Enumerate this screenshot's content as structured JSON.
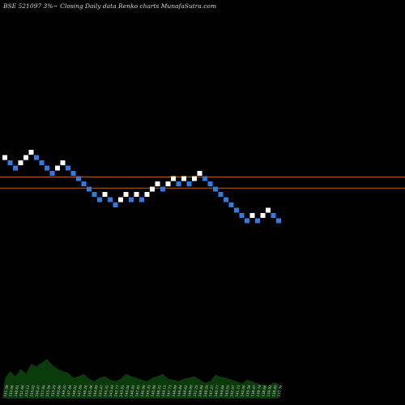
{
  "header": {
    "title": "BSE 521097 3%~  Closing Daily data  Renko  charts MunafaSutra.com"
  },
  "colors": {
    "background": "#000000",
    "up_brick": "#ffffff",
    "down_brick": "#2f7be6",
    "resistance_line": "#b5651d",
    "support_line": "#b5651d",
    "volume_fill": "#0b3a0b",
    "volume_text": "#cfcfcf"
  },
  "chart_data": [
    {
      "type": "renko",
      "title": "BSE 521097 3%~  Closing Daily data  Renko  charts MunafaSutra.com",
      "y_unit_note": "",
      "brick_step": 1,
      "bricks": [
        {
          "dir": "up",
          "level": 9
        },
        {
          "dir": "down",
          "level": 8
        },
        {
          "dir": "down",
          "level": 7
        },
        {
          "dir": "up",
          "level": 8
        },
        {
          "dir": "up",
          "level": 9
        },
        {
          "dir": "up",
          "level": 10
        },
        {
          "dir": "down",
          "level": 9
        },
        {
          "dir": "down",
          "level": 8
        },
        {
          "dir": "down",
          "level": 7
        },
        {
          "dir": "down",
          "level": 6
        },
        {
          "dir": "up",
          "level": 7
        },
        {
          "dir": "up",
          "level": 8
        },
        {
          "dir": "down",
          "level": 7
        },
        {
          "dir": "down",
          "level": 6
        },
        {
          "dir": "down",
          "level": 5
        },
        {
          "dir": "down",
          "level": 4
        },
        {
          "dir": "down",
          "level": 3
        },
        {
          "dir": "down",
          "level": 2
        },
        {
          "dir": "down",
          "level": 1
        },
        {
          "dir": "up",
          "level": 2
        },
        {
          "dir": "down",
          "level": 1
        },
        {
          "dir": "down",
          "level": 0
        },
        {
          "dir": "up",
          "level": 1
        },
        {
          "dir": "up",
          "level": 2
        },
        {
          "dir": "down",
          "level": 1
        },
        {
          "dir": "up",
          "level": 2
        },
        {
          "dir": "down",
          "level": 1
        },
        {
          "dir": "up",
          "level": 2
        },
        {
          "dir": "up",
          "level": 3
        },
        {
          "dir": "up",
          "level": 4
        },
        {
          "dir": "down",
          "level": 3
        },
        {
          "dir": "up",
          "level": 4
        },
        {
          "dir": "up",
          "level": 5
        },
        {
          "dir": "down",
          "level": 4
        },
        {
          "dir": "up",
          "level": 5
        },
        {
          "dir": "down",
          "level": 4
        },
        {
          "dir": "up",
          "level": 5
        },
        {
          "dir": "up",
          "level": 6
        },
        {
          "dir": "down",
          "level": 5
        },
        {
          "dir": "down",
          "level": 4
        },
        {
          "dir": "down",
          "level": 3
        },
        {
          "dir": "down",
          "level": 2
        },
        {
          "dir": "down",
          "level": 1
        },
        {
          "dir": "down",
          "level": 0
        },
        {
          "dir": "down",
          "level": -1
        },
        {
          "dir": "down",
          "level": -2
        },
        {
          "dir": "down",
          "level": -3
        },
        {
          "dir": "up",
          "level": -2
        },
        {
          "dir": "down",
          "level": -3
        },
        {
          "dir": "up",
          "level": -2
        },
        {
          "dir": "up",
          "level": -1
        },
        {
          "dir": "down",
          "level": -2
        },
        {
          "dir": "down",
          "level": -3
        }
      ],
      "horizontal_lines": [
        {
          "name": "upper",
          "level": 5.3
        },
        {
          "name": "lower",
          "level": 3.2
        }
      ],
      "volume": {
        "values": [
          40,
          55,
          45,
          60,
          50,
          70,
          65,
          72,
          80,
          68,
          60,
          55,
          52,
          42,
          45,
          50,
          40,
          35,
          42,
          45,
          38,
          35,
          40,
          50,
          45,
          42,
          38,
          35,
          42,
          45,
          50,
          40,
          38,
          35,
          40,
          42,
          45,
          38,
          32,
          35,
          48,
          44,
          42,
          38,
          35,
          30,
          38,
          35,
          30,
          28,
          25,
          32,
          30
        ],
        "labels": [
          "151.38",
          "150.06",
          "148.81",
          "151.66",
          "153.12",
          "155.02",
          "156.47",
          "157.84",
          "155.94",
          "153.29",
          "150.84",
          "149.20",
          "147.44",
          "148.02",
          "147.89",
          "146.26",
          "145.48",
          "144.89",
          "143.47",
          "145.31",
          "143.43",
          "142.77",
          "143.91",
          "145.04",
          "146.95",
          "147.83",
          "146.96",
          "145.33",
          "146.98",
          "148.22",
          "149.15",
          "147.73",
          "148.89",
          "149.84",
          "148.62",
          "149.99",
          "151.25",
          "149.84",
          "148.20",
          "147.27",
          "146.77",
          "144.84",
          "143.55",
          "142.07",
          "141.21",
          "140.06",
          "139.58",
          "138.47",
          "139.74",
          "138.66",
          "139.92",
          "138.40",
          "137.39"
        ]
      }
    }
  ]
}
